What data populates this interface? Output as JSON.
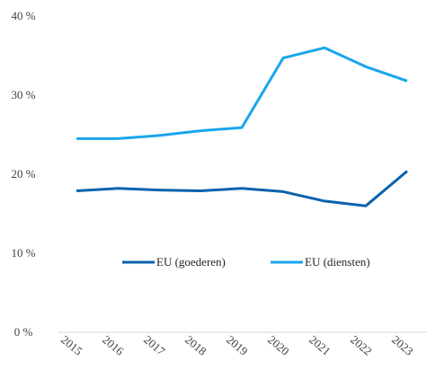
{
  "chart_data": {
    "type": "line",
    "title": "",
    "xlabel": "",
    "ylabel": "",
    "x": [
      "2015",
      "2016",
      "2017",
      "2018",
      "2019",
      "2020",
      "2021",
      "2022",
      "2023"
    ],
    "y_ticks": [
      "0 %",
      "10 %",
      "20 %",
      "30 %",
      "40 %"
    ],
    "y_tick_values": [
      0,
      10,
      20,
      30,
      40
    ],
    "ylim": [
      0,
      40
    ],
    "grid": false,
    "legend_position": "center",
    "series": [
      {
        "name": "EU (goederen)",
        "color": "#0b62ad",
        "values": [
          17.9,
          18.2,
          18.0,
          17.9,
          18.2,
          17.8,
          16.6,
          16.0,
          20.4
        ]
      },
      {
        "name": "EU (diensten)",
        "color": "#1aa6ec",
        "values": [
          24.5,
          24.5,
          24.9,
          25.5,
          25.9,
          34.7,
          36.0,
          33.6,
          31.8
        ]
      }
    ]
  }
}
